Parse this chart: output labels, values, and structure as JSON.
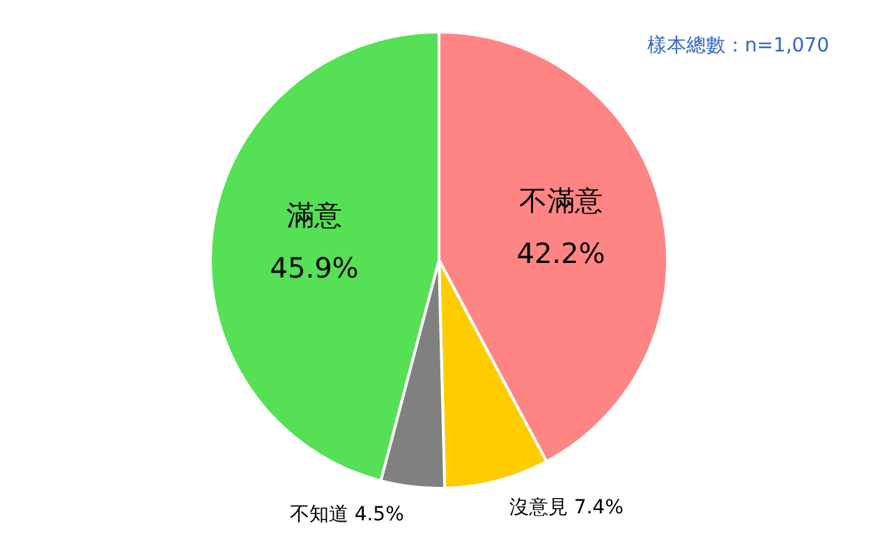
{
  "chart_data": {
    "type": "pie",
    "categories": [
      "不滿意",
      "沒意見",
      "不知道",
      "滿意"
    ],
    "values": [
      42.2,
      7.4,
      4.5,
      45.9
    ],
    "colors": [
      "#ff8585",
      "#ffcc00",
      "#808080",
      "#55e055"
    ],
    "value_labels": [
      "42.2%",
      "7.4%",
      "4.5%",
      "45.9%"
    ],
    "annotations": [
      "樣本總數：n=1,070"
    ]
  }
}
